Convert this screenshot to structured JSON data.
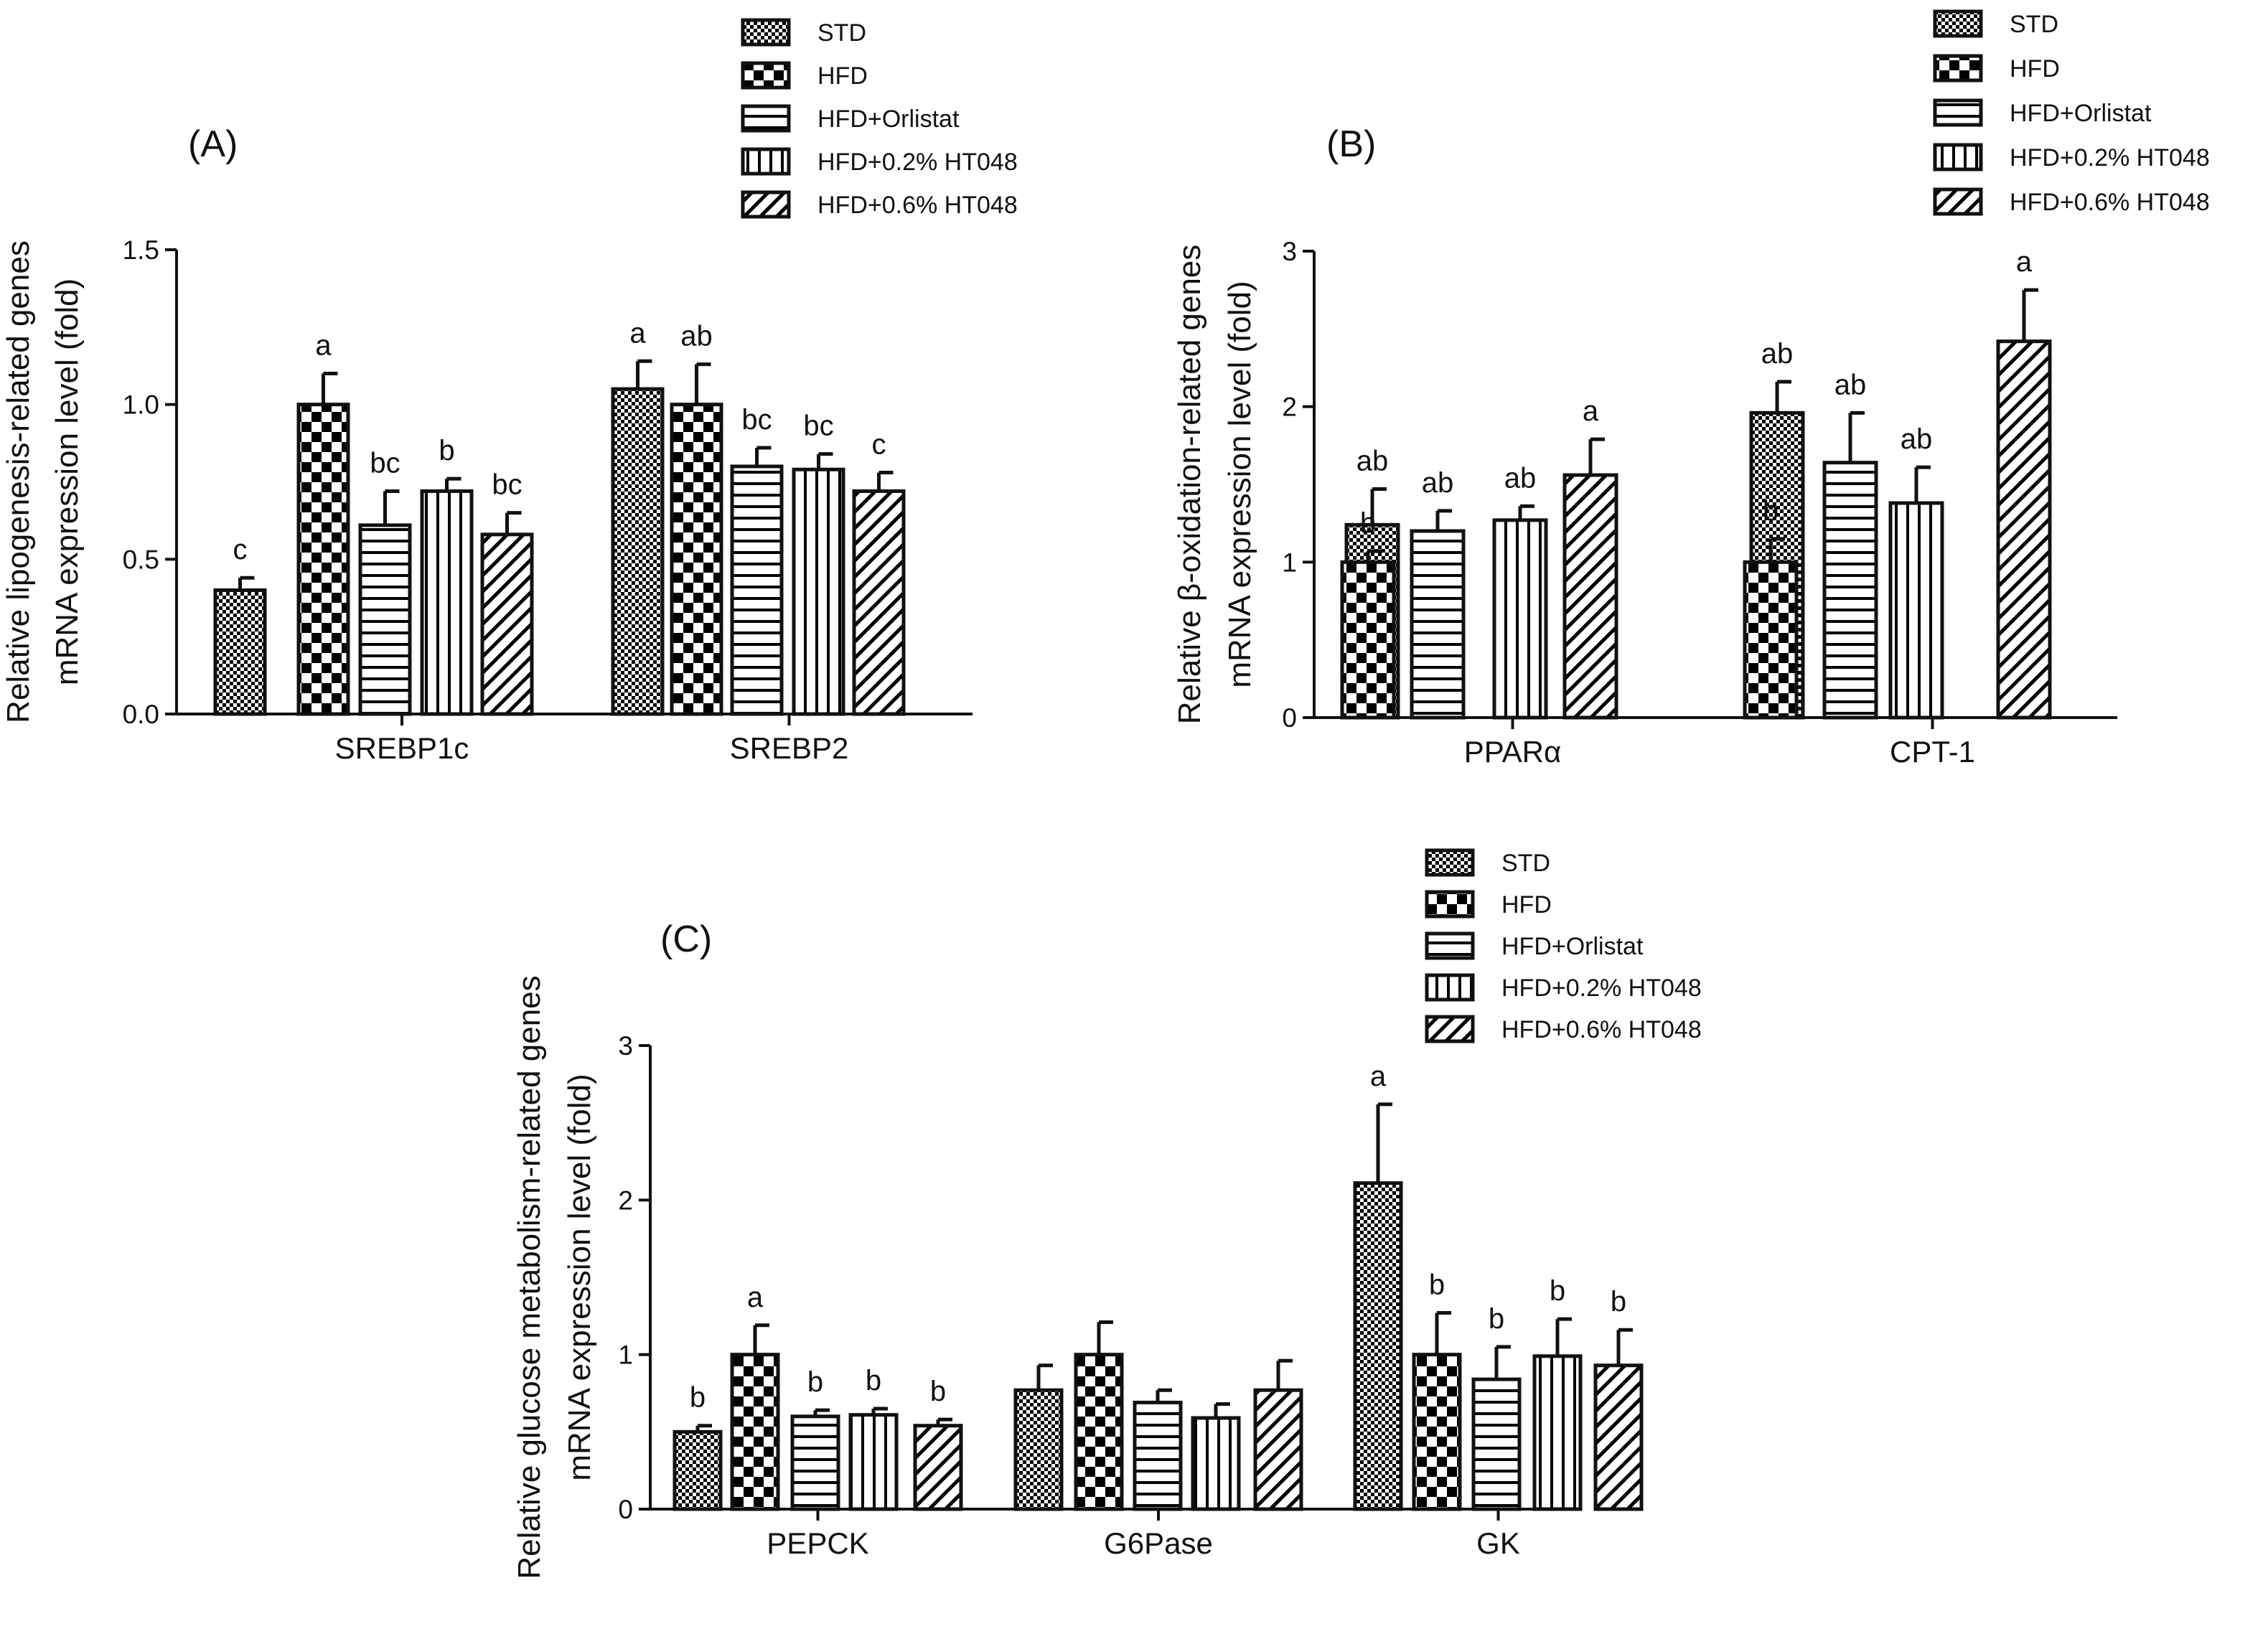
{
  "legend_colors": {
    "stroke": "#111111",
    "background": "#ffffff"
  },
  "chart_data": [
    {
      "type": "bar",
      "panel_label": "(A)",
      "ylabel_lines": [
        "Relative lipogenesis-related genes",
        "mRNA expression level (fold)"
      ],
      "ylim": [
        0,
        1.5
      ],
      "yticks": [
        "0.0",
        "0.5",
        "1.0",
        "1.5"
      ],
      "categories": [
        "SREBP1c",
        "SREBP2"
      ],
      "series": [
        {
          "name": "STD",
          "pattern": "dense-check",
          "values": [
            0.4,
            1.05
          ],
          "errors": [
            0.04,
            0.09
          ],
          "letters": [
            "c",
            "a"
          ]
        },
        {
          "name": "HFD",
          "pattern": "checker",
          "values": [
            1.0,
            1.0
          ],
          "errors": [
            0.1,
            0.13
          ],
          "letters": [
            "a",
            "ab"
          ]
        },
        {
          "name": "HFD+Orlistat",
          "pattern": "horizontal",
          "values": [
            0.61,
            0.8
          ],
          "errors": [
            0.11,
            0.06
          ],
          "letters": [
            "bc",
            "bc"
          ]
        },
        {
          "name": "HFD+0.2% HT048",
          "pattern": "vertical",
          "values": [
            0.72,
            0.79
          ],
          "errors": [
            0.04,
            0.05
          ],
          "letters": [
            "b",
            "bc"
          ]
        },
        {
          "name": "HFD+0.6% HT048",
          "pattern": "diagonal",
          "values": [
            0.58,
            0.72
          ],
          "errors": [
            0.07,
            0.06
          ],
          "letters": [
            "bc",
            "c"
          ]
        }
      ]
    },
    {
      "type": "bar",
      "panel_label": "(B)",
      "ylabel_lines": [
        "Relative β-oxidation-related genes",
        "mRNA expression level (fold)"
      ],
      "ylim": [
        0,
        3
      ],
      "yticks": [
        "0",
        "1",
        "2",
        "3"
      ],
      "categories": [
        "PPARα",
        "CPT-1"
      ],
      "series": [
        {
          "name": "STD",
          "pattern": "dense-check",
          "values": [
            1.24,
            1.96
          ],
          "errors": [
            0.23,
            0.2
          ],
          "letters": [
            "ab",
            "ab"
          ]
        },
        {
          "name": "HFD",
          "pattern": "checker",
          "values": [
            1.0,
            1.0
          ],
          "errors": [
            0.07,
            0.15
          ],
          "letters": [
            "b",
            "b"
          ]
        },
        {
          "name": "HFD+Orlistat",
          "pattern": "horizontal",
          "values": [
            1.2,
            1.64
          ],
          "errors": [
            0.13,
            0.32
          ],
          "letters": [
            "ab",
            "ab"
          ]
        },
        {
          "name": "HFD+0.2% HT048",
          "pattern": "vertical",
          "values": [
            1.27,
            1.38
          ],
          "errors": [
            0.09,
            0.23
          ],
          "letters": [
            "ab",
            "ab"
          ]
        },
        {
          "name": "HFD+0.6% HT048",
          "pattern": "diagonal",
          "values": [
            1.56,
            2.42
          ],
          "errors": [
            0.23,
            0.33
          ],
          "letters": [
            "a",
            "a"
          ]
        }
      ]
    },
    {
      "type": "bar",
      "panel_label": "(C)",
      "ylabel_lines": [
        "Relative glucose metabolism-related genes",
        "mRNA expression level (fold)"
      ],
      "ylim": [
        0,
        3
      ],
      "yticks": [
        "0",
        "1",
        "2",
        "3"
      ],
      "categories": [
        "PEPCK",
        "G6Pase",
        "GK"
      ],
      "series": [
        {
          "name": "STD",
          "pattern": "dense-check",
          "values": [
            0.5,
            0.77,
            2.11
          ],
          "errors": [
            0.04,
            0.16,
            0.51
          ],
          "letters": [
            "b",
            "",
            "a"
          ]
        },
        {
          "name": "HFD",
          "pattern": "checker",
          "values": [
            1.0,
            1.0,
            1.0
          ],
          "errors": [
            0.19,
            0.21,
            0.27
          ],
          "letters": [
            "a",
            "",
            "b"
          ]
        },
        {
          "name": "HFD+Orlistat",
          "pattern": "horizontal",
          "values": [
            0.6,
            0.69,
            0.84
          ],
          "errors": [
            0.04,
            0.08,
            0.21
          ],
          "letters": [
            "b",
            "",
            "b"
          ]
        },
        {
          "name": "HFD+0.2% HT048",
          "pattern": "vertical",
          "values": [
            0.61,
            0.59,
            0.99
          ],
          "errors": [
            0.04,
            0.09,
            0.24
          ],
          "letters": [
            "b",
            "",
            "b"
          ]
        },
        {
          "name": "HFD+0.6% HT048",
          "pattern": "diagonal",
          "values": [
            0.54,
            0.77,
            0.93
          ],
          "errors": [
            0.04,
            0.19,
            0.23
          ],
          "letters": [
            "b",
            "",
            "b"
          ]
        }
      ]
    }
  ]
}
